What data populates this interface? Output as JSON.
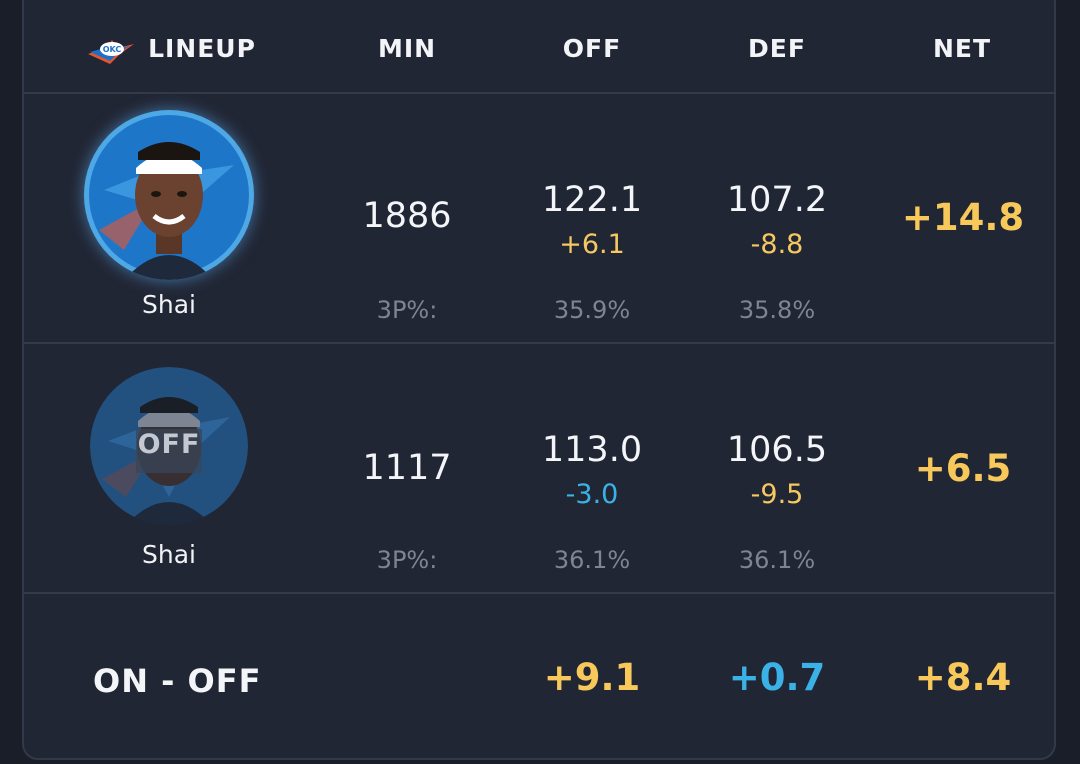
{
  "header": {
    "lineup_label": "LINEUP",
    "columns": [
      "MIN",
      "OFF",
      "DEF",
      "NET"
    ],
    "team_logo": "okc-thunder-logo",
    "team_logo_text": "OKC"
  },
  "rows": [
    {
      "status": "on",
      "name": "Shai",
      "min": "1886",
      "off": "122.1",
      "off_delta": "+6.1",
      "def": "107.2",
      "def_delta": "-8.8",
      "net": "+14.8",
      "threep_label": "3P%:",
      "threep_off": "35.9%",
      "threep_def": "35.8%"
    },
    {
      "status": "off",
      "status_label": "OFF",
      "name": "Shai",
      "min": "1117",
      "off": "113.0",
      "off_delta": "-3.0",
      "def": "106.5",
      "def_delta": "-9.5",
      "net": "+6.5",
      "threep_label": "3P%:",
      "threep_off": "36.1%",
      "threep_def": "36.1%"
    }
  ],
  "summary": {
    "label": "ON - OFF",
    "off": "+9.1",
    "def": "+0.7",
    "net": "+8.4"
  },
  "colors": {
    "positive": "#f5c860",
    "negative": "#3ab2e8",
    "background": "#212634"
  }
}
